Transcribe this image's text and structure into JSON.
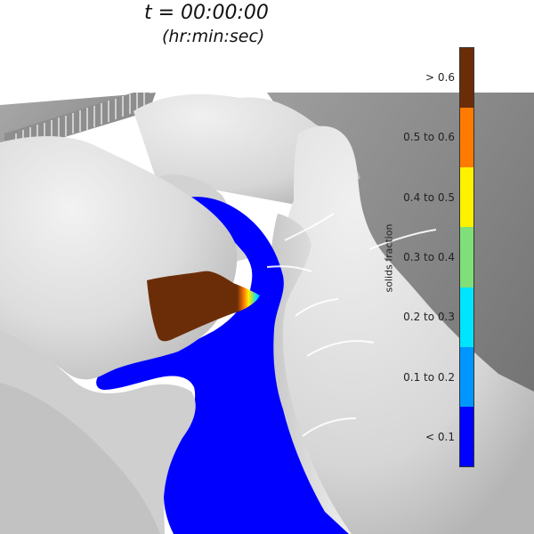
{
  "title": {
    "time": "t = 00:00:00",
    "units": "(hr:min:sec)"
  },
  "legend": {
    "title": "solids fraction",
    "bins": [
      {
        "label": "> 0.6",
        "color": "#6b2d08"
      },
      {
        "label": "0.5 to 0.6",
        "color": "#ff7b00"
      },
      {
        "label": "0.4 to 0.5",
        "color": "#fff200"
      },
      {
        "label": "0.3 to 0.4",
        "color": "#7fe07a"
      },
      {
        "label": "0.2 to 0.3",
        "color": "#00e5ff"
      },
      {
        "label": "0.1 to 0.2",
        "color": "#0096ff"
      },
      {
        "label": "< 0.1",
        "color": "#0000ff"
      }
    ]
  },
  "scene": {
    "water_color": "#0000ff",
    "deposit_color": "#6b2d08",
    "terrain_color": "#e6e6e6",
    "backdrop_color": "#9a9a9a"
  }
}
